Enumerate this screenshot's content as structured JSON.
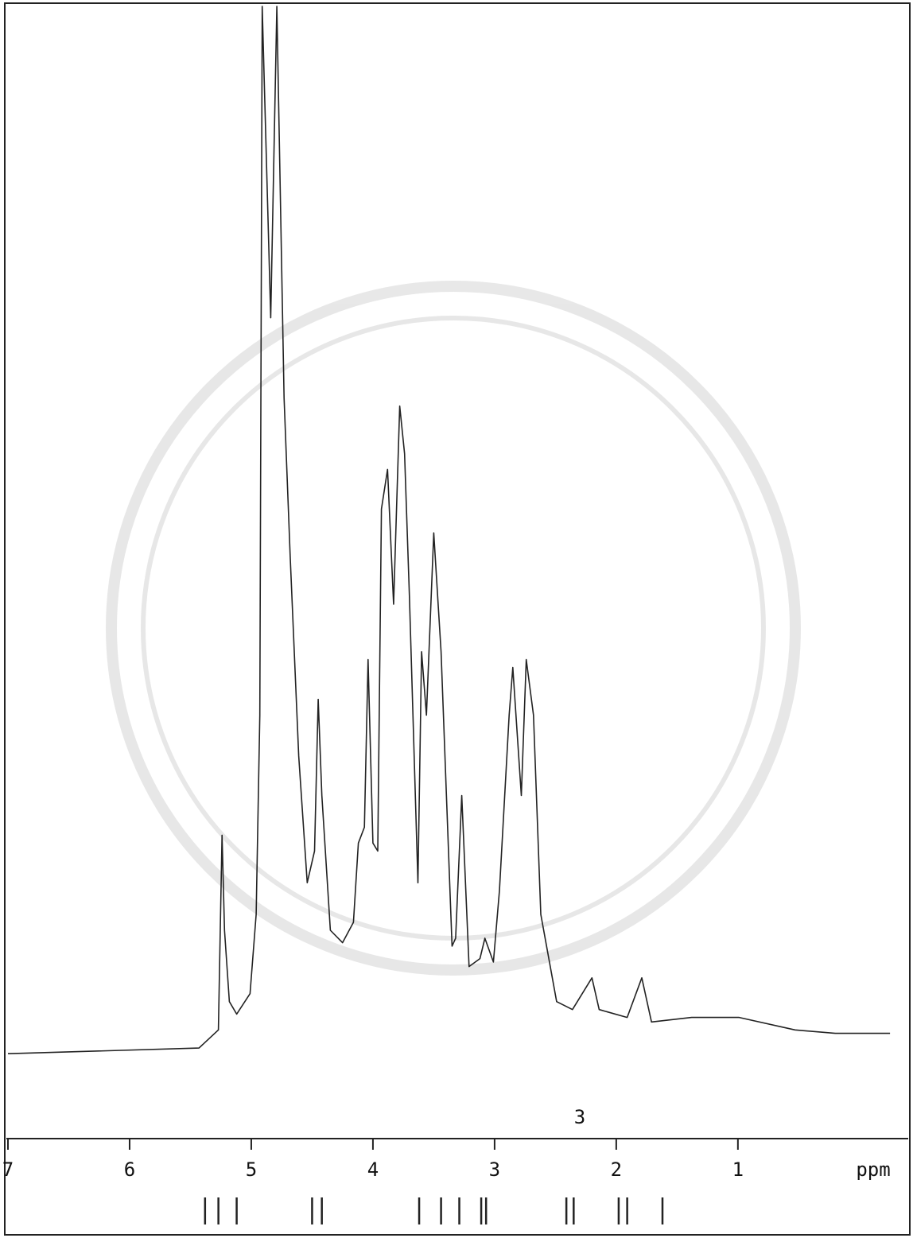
{
  "chart_data": {
    "type": "line",
    "xlabel": "ppm",
    "x": [
      7.0,
      5.43,
      5.27,
      5.24,
      5.22,
      5.18,
      5.12,
      5.01,
      4.96,
      4.93,
      4.91,
      4.84,
      4.79,
      4.73,
      4.68,
      4.61,
      4.54,
      4.48,
      4.45,
      4.42,
      4.35,
      4.25,
      4.16,
      4.12,
      4.07,
      4.04,
      4.0,
      3.96,
      3.93,
      3.88,
      3.83,
      3.78,
      3.74,
      3.7,
      3.63,
      3.6,
      3.56,
      3.5,
      3.44,
      3.35,
      3.32,
      3.27,
      3.21,
      3.12,
      3.08,
      3.01,
      2.96,
      2.88,
      2.85,
      2.78,
      2.74,
      2.68,
      2.62,
      2.49,
      2.36,
      2.2,
      2.14,
      1.91,
      1.79,
      1.71,
      1.38,
      0.99,
      0.53,
      0.2,
      -0.25
    ],
    "values": [
      7.5,
      8.0,
      9.6,
      26.8,
      18.4,
      12.1,
      11.0,
      12.8,
      19.8,
      37.4,
      100,
      72.5,
      100,
      65.4,
      51.4,
      33.8,
      22.6,
      25.4,
      38.8,
      30.3,
      18.4,
      17.3,
      19.1,
      26.1,
      27.5,
      42.3,
      26.1,
      25.4,
      55.6,
      59.1,
      47.2,
      64.7,
      60.5,
      47.9,
      22.6,
      43.0,
      37.4,
      53.5,
      43.0,
      17.0,
      17.7,
      30.3,
      15.2,
      15.9,
      17.7,
      15.6,
      21.9,
      37.4,
      41.6,
      30.3,
      42.3,
      37.4,
      19.8,
      12.1,
      11.4,
      14.2,
      11.4,
      10.7,
      14.2,
      10.3,
      10.7,
      10.7,
      9.6,
      9.3,
      9.3
    ],
    "color": "#222222",
    "xlim": [
      7,
      -0.4
    ],
    "ylim": [
      0,
      100
    ],
    "xticks": [
      7,
      6,
      5,
      4,
      3,
      2,
      1
    ],
    "annotations": [
      {
        "text": "3",
        "x": 2.3
      }
    ],
    "integration_marks": [
      5.38,
      5.27,
      5.12,
      4.5,
      4.42,
      3.62,
      3.44,
      3.29,
      3.11,
      3.07,
      2.41,
      2.35,
      1.98,
      1.91,
      1.62
    ]
  }
}
